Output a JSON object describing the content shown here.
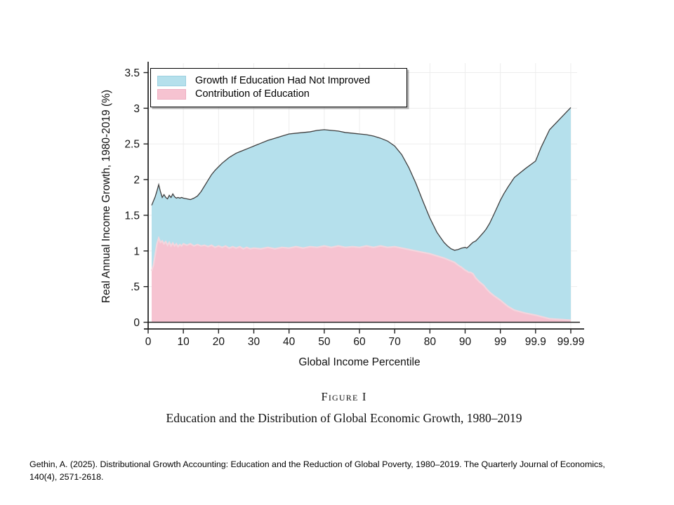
{
  "figure": {
    "caption_label": "Figure I",
    "title": "Education and the Distribution of Global Economic Growth, 1980–2019"
  },
  "citation": {
    "text": "Gethin, A. (2025). Distributional Growth Accounting: Education and the Reduction of Global Poverty, 1980–2019. The Quarterly Journal of Economics, 140(4), 2571-2618."
  },
  "colors": {
    "counterfactual_fill": "#b5e0ec",
    "counterfactual_edge": "#3f3f3f",
    "education_fill": "#f6c3d1",
    "education_edge": "#f3d6de",
    "axis": "#1f1f1f",
    "gridline": "#ededed",
    "legend_swatch_blue_border": "#9cd0e0",
    "legend_swatch_pink_border": "#eeafc2"
  },
  "chart_data": {
    "type": "area",
    "subtype": "stacked growth-incidence curve",
    "xlabel": "Global Income Percentile",
    "ylabel": "Real Annual Income Growth, 1980-2019 (%)",
    "x_tick_labels": [
      "0",
      "10",
      "20",
      "30",
      "40",
      "50",
      "60",
      "70",
      "80",
      "90",
      "99",
      "99.9",
      "99.99"
    ],
    "y_tick_labels": [
      "0",
      ".5",
      "1",
      "1.5",
      "2",
      "2.5",
      "3",
      "3.5"
    ],
    "y_tick_values": [
      0,
      0.5,
      1,
      1.5,
      2,
      2.5,
      3,
      3.5
    ],
    "ylim": [
      0,
      3.5
    ],
    "x_scale": "percentiles 0-90 linear; above 90 log-compressed so ticks 90, 99, 99.9, 99.99 are evenly spaced",
    "grid": true,
    "legend_position": "top-left inside plot",
    "legend": [
      {
        "label": "Growth If Education Had Not Improved",
        "series": "counterfactual_band"
      },
      {
        "label": "Contribution of Education",
        "series": "education"
      }
    ],
    "stacking_note": "pink area spans 0 to education contribution; blue band stacked above it up to total growth (top of blue = total real annual income growth)",
    "x_percentiles": [
      1,
      1.5,
      2,
      2.5,
      3,
      3.5,
      4,
      4.5,
      5,
      5.5,
      6,
      6.5,
      7,
      7.5,
      8,
      8.5,
      9,
      9.5,
      10,
      11,
      12,
      13,
      14,
      15,
      16,
      17,
      18,
      19,
      20,
      21,
      22,
      23,
      24,
      25,
      26,
      27,
      28,
      29,
      30,
      32,
      34,
      36,
      38,
      40,
      42,
      44,
      46,
      48,
      50,
      52,
      54,
      56,
      58,
      60,
      62,
      64,
      66,
      68,
      70,
      72,
      74,
      76,
      78,
      80,
      82,
      84,
      85,
      86,
      87,
      88,
      89,
      90,
      91,
      92,
      93,
      94,
      95,
      96,
      97,
      97.5,
      98,
      98.5,
      99,
      99.2,
      99.4,
      99.6,
      99.8,
      99.9,
      99.93,
      99.96,
      99.99
    ],
    "series": [
      {
        "name": "Total growth (top edge of blue band)",
        "values": [
          1.64,
          1.7,
          1.76,
          1.84,
          1.93,
          1.83,
          1.75,
          1.79,
          1.75,
          1.73,
          1.78,
          1.75,
          1.8,
          1.76,
          1.74,
          1.75,
          1.74,
          1.75,
          1.74,
          1.73,
          1.72,
          1.74,
          1.77,
          1.83,
          1.91,
          1.99,
          2.07,
          2.13,
          2.18,
          2.23,
          2.27,
          2.31,
          2.34,
          2.37,
          2.39,
          2.41,
          2.43,
          2.45,
          2.47,
          2.51,
          2.55,
          2.58,
          2.61,
          2.64,
          2.65,
          2.66,
          2.67,
          2.69,
          2.7,
          2.69,
          2.68,
          2.66,
          2.65,
          2.64,
          2.63,
          2.61,
          2.58,
          2.54,
          2.47,
          2.35,
          2.17,
          1.95,
          1.7,
          1.46,
          1.26,
          1.12,
          1.07,
          1.03,
          1.01,
          1.02,
          1.04,
          1.05,
          1.04,
          1.06,
          1.09,
          1.12,
          1.14,
          1.19,
          1.26,
          1.31,
          1.39,
          1.52,
          1.71,
          1.8,
          1.9,
          2.03,
          2.15,
          2.26,
          2.45,
          2.7,
          3.01
        ]
      },
      {
        "name": "Contribution of Education (top edge of pink area)",
        "values": [
          0.72,
          0.8,
          0.95,
          1.1,
          1.18,
          1.12,
          1.14,
          1.1,
          1.13,
          1.08,
          1.12,
          1.07,
          1.11,
          1.07,
          1.1,
          1.06,
          1.09,
          1.07,
          1.1,
          1.08,
          1.1,
          1.07,
          1.09,
          1.07,
          1.08,
          1.06,
          1.08,
          1.05,
          1.07,
          1.05,
          1.07,
          1.04,
          1.06,
          1.04,
          1.06,
          1.03,
          1.05,
          1.03,
          1.04,
          1.03,
          1.05,
          1.03,
          1.05,
          1.04,
          1.06,
          1.04,
          1.06,
          1.05,
          1.07,
          1.05,
          1.07,
          1.05,
          1.06,
          1.05,
          1.07,
          1.05,
          1.07,
          1.05,
          1.06,
          1.04,
          1.02,
          1.0,
          0.98,
          0.96,
          0.93,
          0.9,
          0.88,
          0.86,
          0.84,
          0.8,
          0.77,
          0.73,
          0.72,
          0.7,
          0.7,
          0.68,
          0.62,
          0.57,
          0.52,
          0.47,
          0.42,
          0.37,
          0.31,
          0.27,
          0.22,
          0.17,
          0.13,
          0.1,
          0.08,
          0.05,
          0.03
        ]
      }
    ]
  }
}
